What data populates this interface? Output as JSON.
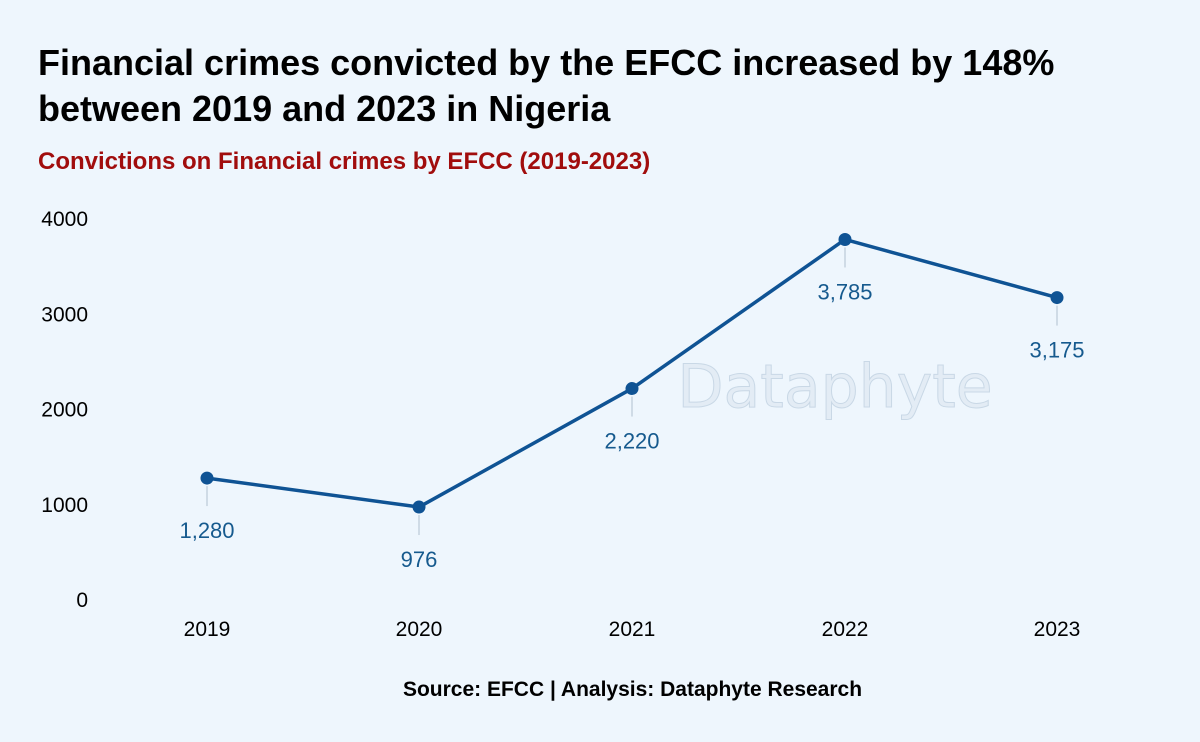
{
  "title": "Financial crimes convicted by the EFCC increased by 148% between 2019 and 2023 in Nigeria",
  "subtitle": "Convictions on Financial crimes by EFCC (2019-2023)",
  "source": "Source: EFCC | Analysis: Dataphyte Research",
  "watermark": "Dataphyte",
  "colors": {
    "line": "#0f5394",
    "label": "#165a8e",
    "subtitle": "#a10d0d",
    "background": "#eef6fd"
  },
  "chart_data": {
    "type": "line",
    "x": [
      "2019",
      "2020",
      "2021",
      "2022",
      "2023"
    ],
    "series": [
      {
        "values": [
          1280,
          976,
          2220,
          3785,
          3175
        ]
      }
    ],
    "data_labels": [
      "1,280",
      "976",
      "2,220",
      "3,785",
      "3,175"
    ],
    "y_ticks": [
      "0",
      "1000",
      "2000",
      "3000",
      "4000"
    ],
    "y_tick_values": [
      0,
      1000,
      2000,
      3000,
      4000
    ],
    "ylim": [
      0,
      4000
    ],
    "grid": false,
    "legend": "none"
  }
}
